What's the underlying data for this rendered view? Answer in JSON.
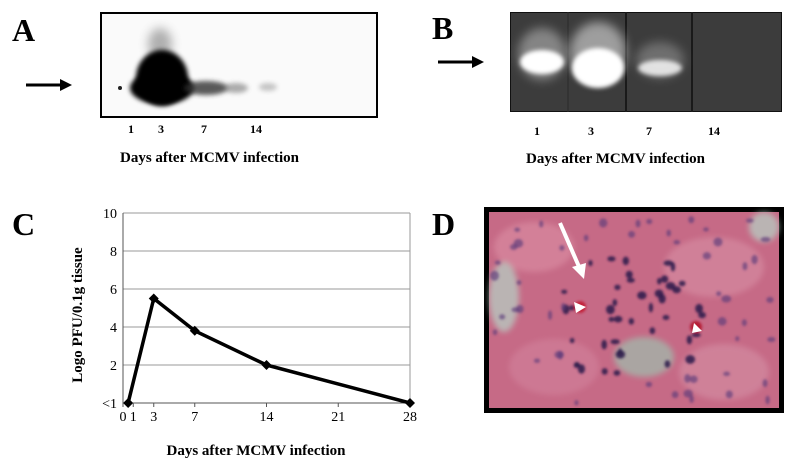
{
  "panels": {
    "a": {
      "letter": "A",
      "lanes": [
        "1",
        "3",
        "7",
        "14"
      ],
      "xlabel": "Days after MCMV infection"
    },
    "b": {
      "letter": "B",
      "lanes": [
        "1",
        "3",
        "7",
        "14"
      ],
      "xlabel": "Days after MCMV infection"
    },
    "c": {
      "letter": "C"
    },
    "d": {
      "letter": "D"
    }
  },
  "chart_data": {
    "type": "line",
    "title": "",
    "xlabel": "Days after MCMV infection",
    "ylabel": "Logo PFU/0.1g tissue",
    "x_ticks": [
      "0",
      "1",
      "3",
      "7",
      "14",
      "21",
      "28"
    ],
    "y_ticks": [
      "<1",
      "2",
      "4",
      "6",
      "8",
      "10"
    ],
    "xlim": [
      0,
      28
    ],
    "ylim": [
      0,
      10
    ],
    "grid": "horizontal",
    "series": [
      {
        "points": [
          {
            "x": 0.5,
            "y": 0
          },
          {
            "x": 3,
            "y": 5.5
          },
          {
            "x": 7,
            "y": 3.8
          },
          {
            "x": 14,
            "y": 2.0
          },
          {
            "x": 28,
            "y": 0
          }
        ]
      }
    ],
    "colors": {
      "line": "#000000",
      "grid": "#9a9a9a"
    }
  }
}
